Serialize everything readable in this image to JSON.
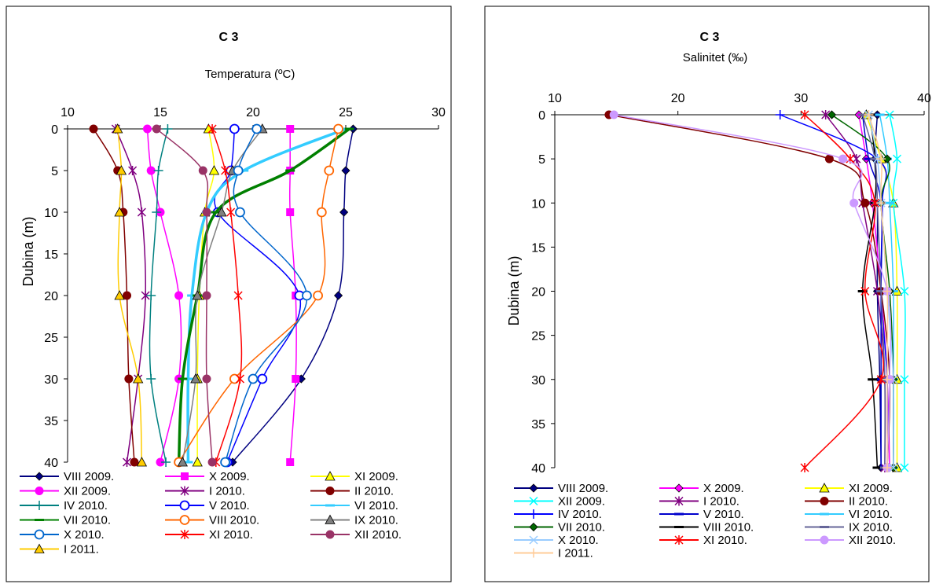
{
  "chart_data": [
    {
      "type": "line",
      "title": "C 3",
      "subtitle": "Temperatura (ºC)",
      "ylabel": "Dubina (m)",
      "xlim": [
        10,
        30
      ],
      "ylim": [
        0,
        40
      ],
      "xticks": [
        "10",
        "15",
        "20",
        "25",
        "30"
      ],
      "yticks": [
        "0",
        "5",
        "10",
        "15",
        "20",
        "25",
        "30",
        "35",
        "40"
      ],
      "depths": [
        0,
        5,
        10,
        20,
        30,
        40
      ],
      "legend_position": "bottom",
      "series": [
        {
          "name": "VIII 2009.",
          "color": "#000080",
          "marker": "diamond",
          "values": [
            25.4,
            25.0,
            24.9,
            24.6,
            22.6,
            18.9
          ]
        },
        {
          "name": "X 2009.",
          "color": "#ff00ff",
          "marker": "square",
          "values": [
            22.0,
            22.0,
            22.0,
            22.3,
            22.3,
            22.0
          ]
        },
        {
          "name": "XI 2009.",
          "color": "#ffff00",
          "marker": "triangle",
          "values": [
            17.6,
            17.9,
            17.4,
            17.1,
            17.0,
            17.0
          ]
        },
        {
          "name": "XII 2009.",
          "color": "#ff00ff",
          "marker": "circle",
          "values": [
            14.3,
            14.5,
            15.0,
            16.0,
            16.0,
            15.0
          ]
        },
        {
          "name": "I 2010.",
          "color": "#800080",
          "marker": "asterisk",
          "values": [
            12.6,
            13.5,
            14.0,
            14.2,
            13.8,
            13.2
          ]
        },
        {
          "name": "II 2010.",
          "color": "#800000",
          "marker": "circle",
          "values": [
            11.4,
            12.7,
            13.0,
            13.2,
            13.3,
            13.6
          ]
        },
        {
          "name": "IV 2010.",
          "color": "#008080",
          "marker": "plus",
          "values": [
            15.4,
            14.9,
            14.8,
            14.5,
            14.5,
            15.3
          ]
        },
        {
          "name": "V 2010.",
          "color": "#0000ff",
          "marker": "ocircle",
          "values": [
            19.0,
            18.8,
            18.1,
            22.5,
            20.5,
            18.6
          ]
        },
        {
          "name": "VI 2010.",
          "color": "#33ccff",
          "marker": "dash",
          "values": [
            25.0,
            19.5,
            17.5,
            16.7,
            16.5,
            16.5
          ]
        },
        {
          "name": "VII 2010.",
          "color": "#008000",
          "marker": "dash",
          "values": [
            25.2,
            22.0,
            18.0,
            17.0,
            16.2,
            16.0
          ]
        },
        {
          "name": "VIII 2010.",
          "color": "#ff6600",
          "marker": "ocircle",
          "values": [
            24.6,
            24.1,
            23.7,
            23.5,
            19.0,
            16.0
          ]
        },
        {
          "name": "IX 2010.",
          "color": "#808080",
          "marker": "triangle",
          "values": [
            20.5,
            18.9,
            18.3,
            17.0,
            16.9,
            16.2
          ]
        },
        {
          "name": "X 2010.",
          "color": "#0066cc",
          "marker": "ocircle",
          "values": [
            20.2,
            19.2,
            19.3,
            22.9,
            20.0,
            18.5
          ]
        },
        {
          "name": "XI 2010.",
          "color": "#ff0000",
          "marker": "asterisk",
          "values": [
            17.8,
            18.5,
            18.8,
            19.2,
            19.3,
            18.0
          ]
        },
        {
          "name": "XII 2010.",
          "color": "#993366",
          "marker": "circle",
          "values": [
            14.8,
            17.3,
            17.5,
            17.5,
            17.5,
            17.8
          ]
        },
        {
          "name": "I 2011.",
          "color": "#ffcc00",
          "marker": "triangle",
          "values": [
            12.7,
            12.9,
            12.8,
            12.8,
            13.8,
            14.0
          ]
        }
      ]
    },
    {
      "type": "line",
      "title": "C 3",
      "subtitle": "Salinitet (‰)",
      "ylabel": "Dubina (m)",
      "xlim": [
        10,
        40
      ],
      "ylim": [
        0,
        40
      ],
      "xticks": [
        "10",
        "20",
        "30",
        "40"
      ],
      "yticks": [
        "0",
        "5",
        "10",
        "15",
        "20",
        "25",
        "30",
        "35",
        "40"
      ],
      "depths": [
        0,
        5,
        10,
        20,
        30,
        40
      ],
      "legend_position": "bottom",
      "series": [
        {
          "name": "VIII 2009.",
          "color": "#000080",
          "marker": "diamond",
          "values": [
            36.2,
            36.0,
            36.2,
            36.2,
            36.4,
            36.5
          ]
        },
        {
          "name": "X 2009.",
          "color": "#ff00ff",
          "marker": "diamond",
          "values": [
            34.7,
            35.3,
            35.8,
            36.5,
            37.0,
            37.2
          ]
        },
        {
          "name": "XI 2009.",
          "color": "#ffff00",
          "marker": "triangle",
          "values": [
            35.3,
            36.5,
            37.5,
            37.8,
            37.8,
            37.8
          ]
        },
        {
          "name": "XII 2009.",
          "color": "#00ffff",
          "marker": "x",
          "values": [
            37.2,
            37.8,
            37.5,
            38.4,
            38.4,
            38.4
          ]
        },
        {
          "name": "I 2010.",
          "color": "#800080",
          "marker": "asterisk",
          "values": [
            32.0,
            34.5,
            35.0,
            36.2,
            36.8,
            36.8
          ]
        },
        {
          "name": "II 2010.",
          "color": "#800000",
          "marker": "circle",
          "values": [
            14.4,
            32.3,
            35.2,
            36.5,
            37.2,
            37.0
          ]
        },
        {
          "name": "IV 2010.",
          "color": "#0000ff",
          "marker": "plus",
          "values": [
            28.3,
            36.2,
            36.6,
            36.5,
            37.0,
            37.0
          ]
        },
        {
          "name": "V 2010.",
          "color": "#0000cc",
          "marker": "dash",
          "values": [
            35.0,
            35.5,
            36.5,
            36.5,
            36.5,
            36.5
          ]
        },
        {
          "name": "VI 2010.",
          "color": "#33ccff",
          "marker": "dash",
          "values": [
            36.4,
            37.0,
            37.2,
            37.5,
            37.5,
            37.5
          ]
        },
        {
          "name": "VII 2010.",
          "color": "#006600",
          "marker": "diamond",
          "values": [
            32.5,
            37.0,
            36.5,
            37.2,
            37.5,
            37.5
          ]
        },
        {
          "name": "VIII 2010.",
          "color": "#000000",
          "marker": "dash",
          "values": [
            35.6,
            36.0,
            36.0,
            35.0,
            35.8,
            36.2
          ]
        },
        {
          "name": "IX 2010.",
          "color": "#666699",
          "marker": "dash",
          "values": [
            35.0,
            36.0,
            36.2,
            36.5,
            36.8,
            36.8
          ]
        },
        {
          "name": "X 2010.",
          "color": "#99ccff",
          "marker": "x",
          "values": [
            35.5,
            36.2,
            36.5,
            37.0,
            37.5,
            37.5
          ]
        },
        {
          "name": "XI 2010.",
          "color": "#ff0000",
          "marker": "asterisk",
          "values": [
            30.3,
            34.0,
            36.0,
            35.2,
            36.5,
            30.3
          ]
        },
        {
          "name": "XII 2010.",
          "color": "#cc99ff",
          "marker": "circle",
          "values": [
            14.8,
            33.4,
            34.3,
            37.0,
            37.2,
            37.0
          ]
        },
        {
          "name": "I 2011.",
          "color": "#ffcc99",
          "marker": "plus",
          "values": [
            35.5,
            36.5,
            36.5,
            37.0,
            37.0,
            37.0
          ]
        }
      ]
    }
  ]
}
